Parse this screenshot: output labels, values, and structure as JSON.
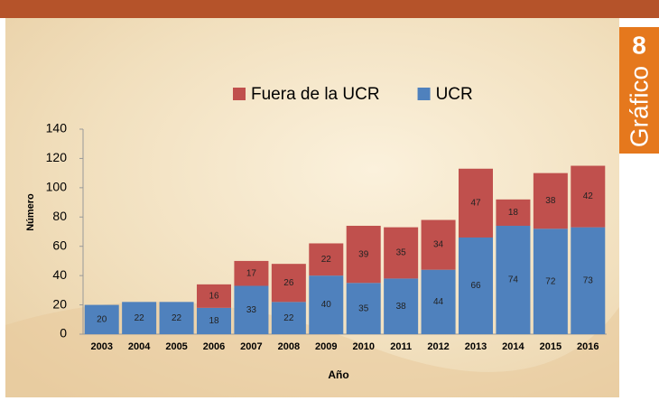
{
  "chart_data": {
    "type": "stacked_bar",
    "x_label": "Año",
    "y_label": "Número",
    "categories": [
      "2003",
      "2004",
      "2005",
      "2006",
      "2007",
      "2008",
      "2009",
      "2010",
      "2011",
      "2012",
      "2013",
      "2014",
      "2015",
      "2016"
    ],
    "series": [
      {
        "name": "Fuera de la UCR",
        "color": "#c0504d",
        "values": [
          null,
          null,
          null,
          16,
          17,
          26,
          22,
          39,
          35,
          34,
          47,
          18,
          38,
          42
        ]
      },
      {
        "name": "UCR",
        "color": "#4f81bd",
        "values": [
          20,
          22,
          22,
          18,
          33,
          22,
          40,
          35,
          38,
          44,
          66,
          74,
          72,
          73
        ]
      }
    ],
    "ylim": [
      0,
      140
    ],
    "yticks": [
      0,
      20,
      40,
      60,
      80,
      100,
      120,
      140
    ]
  },
  "badge": {
    "label": "Gráfico",
    "number": "8"
  }
}
